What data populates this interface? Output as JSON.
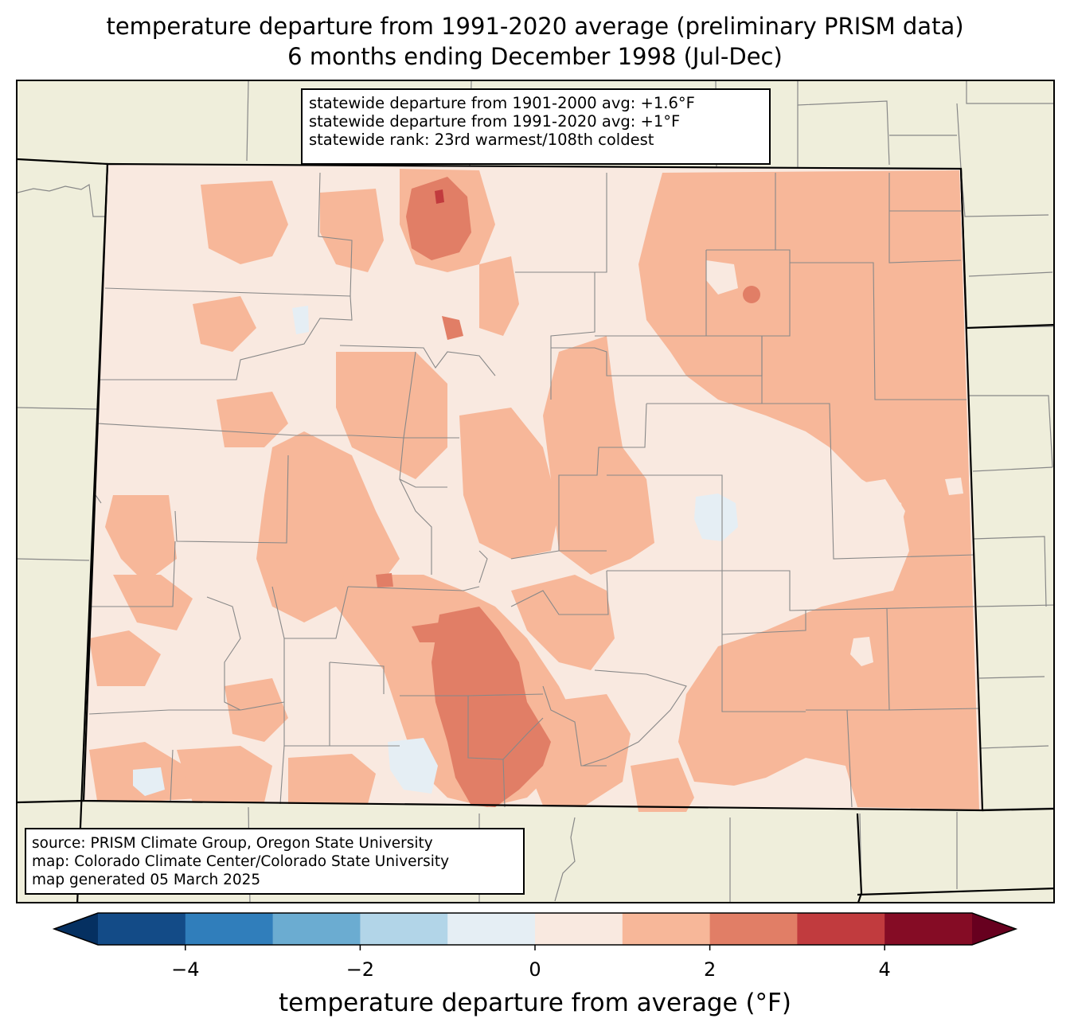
{
  "title": {
    "line1": "temperature departure from 1991-2020 average (preliminary PRISM data)",
    "line2": "6 months ending December 1998 (Jul-Dec)"
  },
  "stats_box": {
    "line1": "statewide departure from 1901-2000 avg: +1.6°F",
    "line2": "statewide departure from 1991-2020 avg: +1°F",
    "line3": "statewide rank: 23rd warmest/108th coldest"
  },
  "source_box": {
    "line1": "source: PRISM Climate Group, Oregon State University",
    "line2": "map: Colorado Climate Center/Colorado State University",
    "line3": "map generated 05 March 2025"
  },
  "colorbar": {
    "label": "temperature departure from average (°F)",
    "min": -5,
    "max": 5,
    "bins": [
      {
        "from": -5,
        "to": -4,
        "color": "#134b87"
      },
      {
        "from": -4,
        "to": -3,
        "color": "#307ebb"
      },
      {
        "from": -3,
        "to": -2,
        "color": "#6bacd1"
      },
      {
        "from": -2,
        "to": -1,
        "color": "#b2d5e8"
      },
      {
        "from": -1,
        "to": 0,
        "color": "#e5eef4"
      },
      {
        "from": 0,
        "to": 1,
        "color": "#f9e9e0"
      },
      {
        "from": 1,
        "to": 2,
        "color": "#f7b799"
      },
      {
        "from": 2,
        "to": 3,
        "color": "#e17e66"
      },
      {
        "from": 3,
        "to": 4,
        "color": "#c13b3e"
      },
      {
        "from": 4,
        "to": 5,
        "color": "#850c25"
      }
    ],
    "under_color": "#053061",
    "over_color": "#67001f",
    "ticks": [
      {
        "value": -4,
        "label": "−4"
      },
      {
        "value": -2,
        "label": "−2"
      },
      {
        "value": 0,
        "label": "0"
      },
      {
        "value": 2,
        "label": "2"
      },
      {
        "value": 4,
        "label": "4"
      }
    ]
  },
  "map_colors": {
    "background": "#efeedb",
    "border_line": "#888888",
    "state_line": "#000000"
  }
}
